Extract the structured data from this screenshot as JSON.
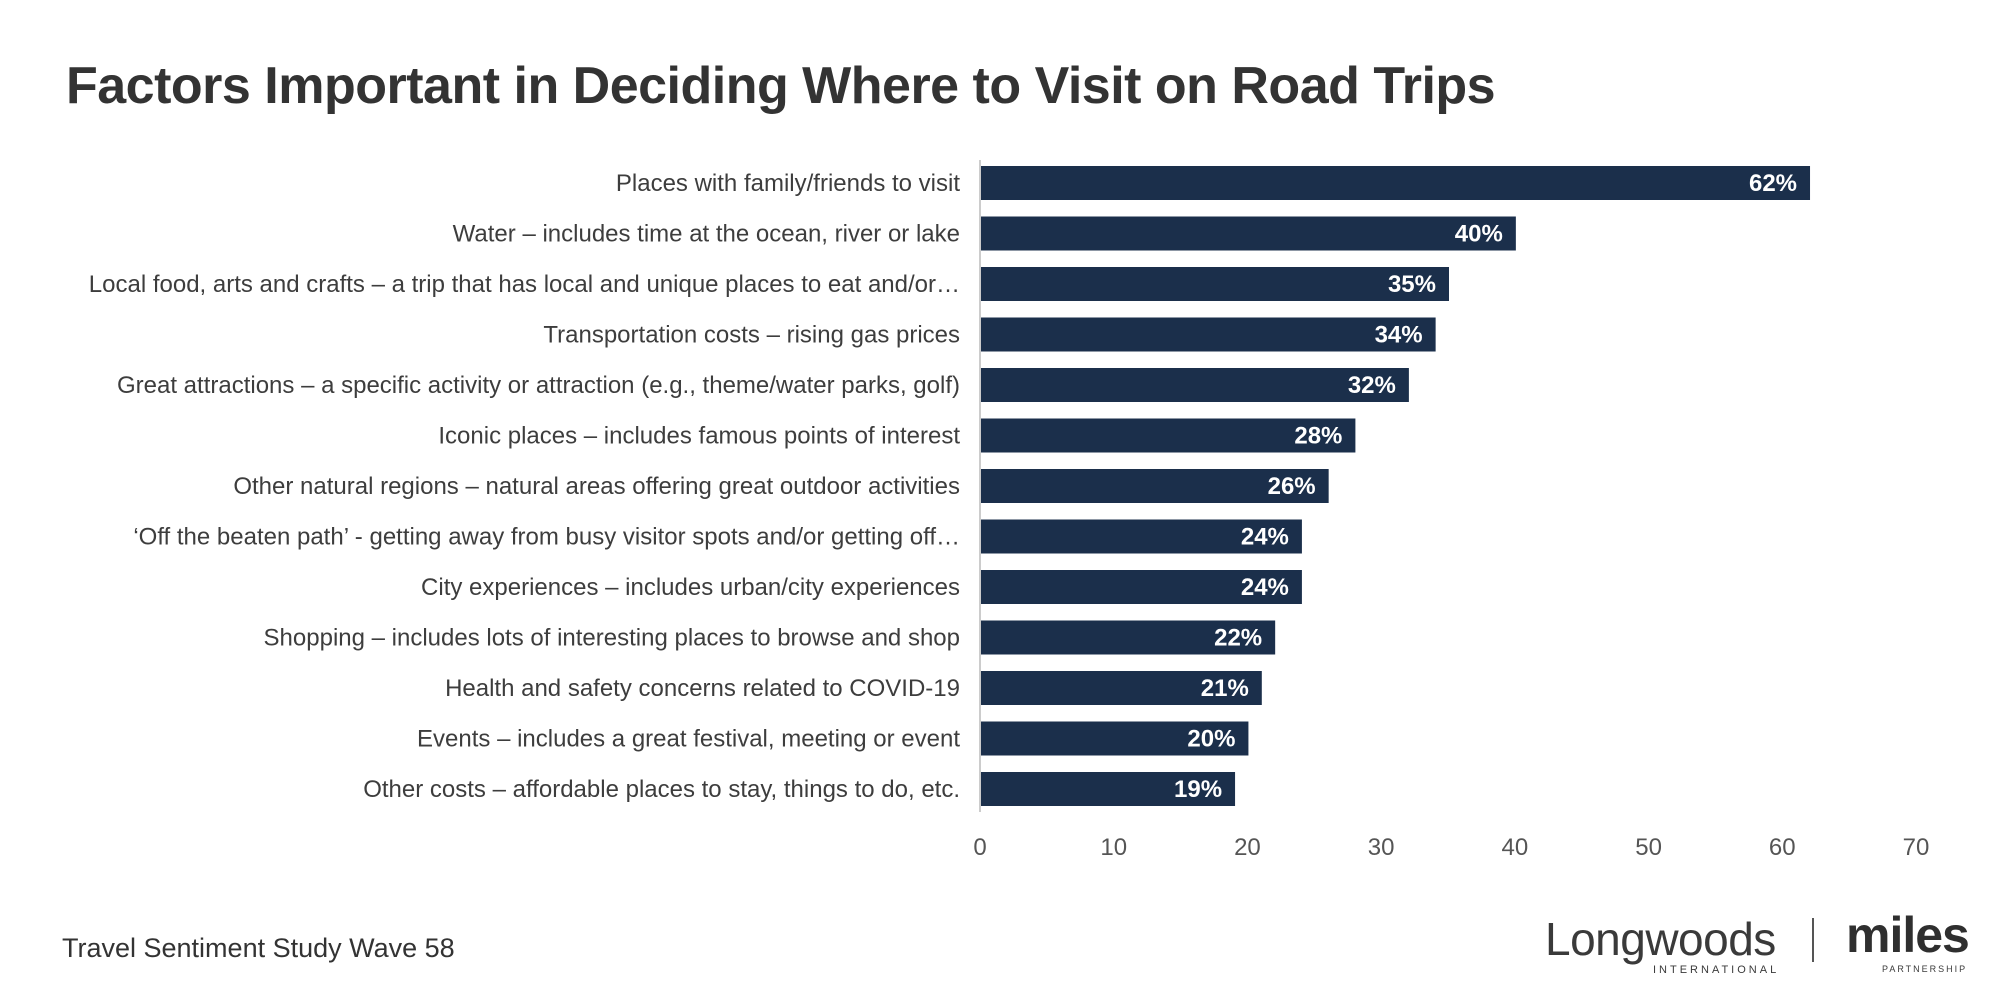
{
  "header": {
    "title": "Factors Important in Deciding Where to Visit on Road Trips"
  },
  "chart_data": {
    "type": "bar",
    "orientation": "horizontal",
    "title": "Factors Important in Deciding Where to Visit on Road Trips",
    "xlabel": "",
    "ylabel": "",
    "xlim": [
      0,
      70
    ],
    "ticks": [
      "0",
      "10",
      "20",
      "30",
      "40",
      "50",
      "60",
      "70"
    ],
    "categories": [
      "Places with family/friends to visit",
      "Water – includes time at the ocean, river or lake",
      "Local food, arts and crafts – a trip that has local and unique places to eat and/or…",
      "Transportation costs – rising gas prices",
      "Great attractions – a specific activity or attraction (e.g., theme/water parks, golf)",
      "Iconic places – includes famous points of interest",
      "Other natural regions – natural areas offering great outdoor activities",
      "‘Off the beaten path’ - getting away from busy visitor spots and/or getting off…",
      "City experiences – includes urban/city experiences",
      "Shopping – includes lots of interesting places to browse and shop",
      "Health and safety concerns related to COVID-19",
      "Events – includes a great festival, meeting or event",
      "Other costs – affordable places to stay, things to do, etc."
    ],
    "values": [
      62,
      40,
      35,
      34,
      32,
      28,
      26,
      24,
      24,
      22,
      21,
      20,
      19
    ],
    "value_labels": [
      "62%",
      "40%",
      "35%",
      "34%",
      "32%",
      "28%",
      "26%",
      "24%",
      "24%",
      "22%",
      "21%",
      "20%",
      "19%"
    ],
    "bar_color": "#1b2f4b",
    "grid": false,
    "legend": "none"
  },
  "footer": {
    "source": "Travel Sentiment Study Wave 58"
  },
  "logos": {
    "longwoods_main": "Longwoods",
    "longwoods_sub": "INTERNATIONAL",
    "miles_main": "miles",
    "miles_sub": "PARTNERSHIP"
  }
}
